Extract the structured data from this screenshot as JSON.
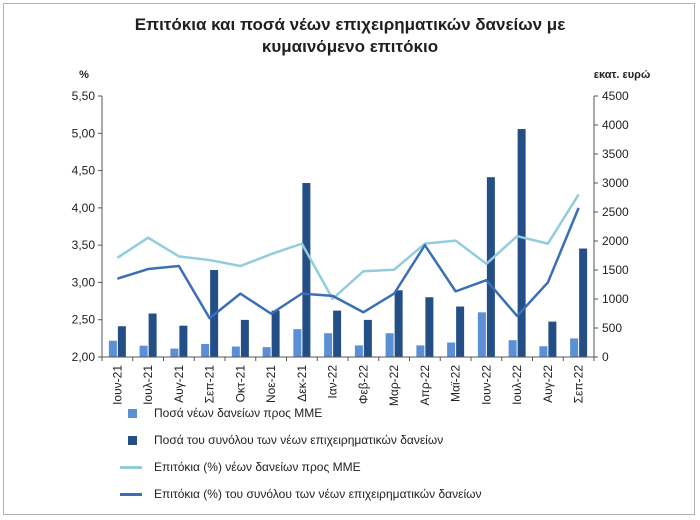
{
  "chart_data": {
    "type": "bar",
    "title_line1": "Επιτόκια και ποσά νέων επιχειρηματικών δανείων με",
    "title_line2": "κυμαινόμενο επιτόκιο",
    "left_axis_label": "%",
    "right_axis_label": "εκατ. ευρώ",
    "categories": [
      "Ιουν-21",
      "Ιουλ-21",
      "Αυγ-21",
      "Σεπ-21",
      "Οκτ-21",
      "Νοε-21",
      "Δεκ-21",
      "Ιαν-22",
      "Φεβ-22",
      "Μαρ-22",
      "Απρ-22",
      "Μαϊ-22",
      "Ιουν-22",
      "Ιουλ-22",
      "Αυγ-22",
      "Σεπ-22"
    ],
    "left_axis": {
      "min": 2.0,
      "max": 5.5,
      "step": 0.5,
      "ticks": [
        "2,00",
        "2,50",
        "3,00",
        "3,50",
        "4,00",
        "4,50",
        "5,00",
        "5,50"
      ]
    },
    "right_axis": {
      "min": 0,
      "max": 4500,
      "step": 500,
      "ticks": [
        "0",
        "500",
        "1000",
        "1500",
        "2000",
        "2500",
        "3000",
        "3500",
        "4000",
        "4500"
      ]
    },
    "series": [
      {
        "name": "Ποσά νέων δανείων προς ΜΜΕ",
        "kind": "bar",
        "axis": "right",
        "color": "#5b8fd6",
        "values": [
          280,
          195,
          145,
          225,
          180,
          170,
          480,
          410,
          200,
          410,
          200,
          250,
          770,
          290,
          185,
          320
        ]
      },
      {
        "name": "Ποσά του συνόλου των νέων επιχειρηματικών δανείων",
        "kind": "bar",
        "axis": "right",
        "color": "#244e86",
        "values": [
          530,
          750,
          540,
          1500,
          640,
          800,
          3000,
          800,
          640,
          1150,
          1030,
          870,
          3100,
          3930,
          610,
          1870
        ]
      },
      {
        "name": "Επιτόκια (%) νέων δανείων προς ΜΜΕ",
        "kind": "line",
        "axis": "left",
        "color": "#92cddc",
        "values": [
          3.33,
          3.6,
          3.35,
          3.3,
          3.22,
          3.38,
          3.52,
          2.78,
          3.15,
          3.17,
          3.52,
          3.56,
          3.25,
          3.62,
          3.52,
          4.18
        ]
      },
      {
        "name": "Επιτόκια (%) του συνόλου των νέων επιχειρηματικών δανείων",
        "kind": "line",
        "axis": "left",
        "color": "#3a6fb5",
        "values": [
          3.05,
          3.18,
          3.22,
          2.52,
          2.85,
          2.58,
          2.85,
          2.82,
          2.6,
          2.85,
          3.5,
          2.88,
          3.03,
          2.55,
          3.0,
          4.0
        ]
      }
    ],
    "grid": false,
    "legend_position": "bottom"
  }
}
